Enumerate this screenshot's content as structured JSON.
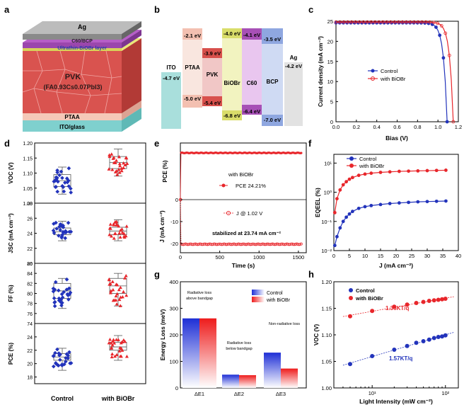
{
  "panels": {
    "a": {
      "letter": "a",
      "layers": [
        "Ag",
        "C60/BCP",
        "Ultrathin-BiOBr layer",
        "PVK",
        "(FA0.93Cs0.07PbI3)",
        "PTAA",
        "ITO/glass"
      ]
    },
    "b": {
      "letter": "b",
      "materials": [
        {
          "name": "ITO",
          "top": "-4.7 eV",
          "bottom": ""
        },
        {
          "name": "PTAA",
          "top": "-2.1 eV",
          "bottom": "-5.0 eV"
        },
        {
          "name": "PVK",
          "top": "-3.9 eV",
          "bottom": "-5.4 eV"
        },
        {
          "name": "BiOBr",
          "top": "-4.0 eV",
          "bottom": "-6.8 eV"
        },
        {
          "name": "C60",
          "top": "-4.1 eV",
          "bottom": "-6.4 eV"
        },
        {
          "name": "BCP",
          "top": "-3.5 eV",
          "bottom": "-7.0 eV"
        },
        {
          "name": "Ag",
          "top": "-4.2 eV",
          "bottom": ""
        }
      ]
    },
    "c": {
      "letter": "c",
      "chart_data": {
        "type": "line",
        "xlabel": "Bias (V)",
        "ylabel": "Current density (mA cm⁻²)",
        "xlim": [
          0,
          1.2
        ],
        "ylim": [
          0,
          25
        ],
        "xticks": [
          "0.0",
          "0.2",
          "0.4",
          "0.6",
          "0.8",
          "1.0",
          "1.2"
        ],
        "yticks": [
          "0",
          "5",
          "10",
          "15",
          "20",
          "25"
        ],
        "legend": "center",
        "series": [
          {
            "name": "Control",
            "color": "#2233bb",
            "jsc": 24.6,
            "voc": 1.09
          },
          {
            "name": "with BiOBr",
            "color": "#e8262b",
            "jsc": 24.8,
            "voc": 1.15
          }
        ]
      }
    },
    "d": {
      "letter": "d",
      "chart_data": {
        "type": "box",
        "categories": [
          "Control",
          "with BiOBr"
        ],
        "colors": [
          "#2233bb",
          "#e8262b"
        ],
        "subplots": [
          {
            "ylabel": "VOC (V)",
            "ylim": [
              1.0,
              1.2
            ],
            "yticks": [
              "1.00",
              "1.05",
              "1.10",
              "1.15",
              "1.20"
            ],
            "median": [
              1.075,
              1.135
            ],
            "q1": [
              1.055,
              1.115
            ],
            "q3": [
              1.095,
              1.155
            ],
            "min": [
              1.03,
              1.09
            ],
            "max": [
              1.12,
              1.18
            ]
          },
          {
            "ylabel": "JSC (mA cm⁻²)",
            "ylim": [
              20,
              28
            ],
            "yticks": [
              "20",
              "22",
              "24",
              "26",
              "28"
            ],
            "median": [
              24.2,
              24.3
            ],
            "q1": [
              23.8,
              23.8
            ],
            "q3": [
              24.7,
              24.8
            ],
            "min": [
              23.0,
              23.0
            ],
            "max": [
              25.6,
              25.8
            ]
          },
          {
            "ylabel": "FF (%)",
            "ylim": [
              74,
              86
            ],
            "yticks": [
              "74",
              "76",
              "78",
              "80",
              "82",
              "84",
              "86"
            ],
            "median": [
              80.5,
              81.5
            ],
            "q1": [
              79.0,
              80.0
            ],
            "q3": [
              82.0,
              83.0
            ],
            "min": [
              77.0,
              77.5
            ],
            "max": [
              83.0,
              84.0
            ]
          },
          {
            "ylabel": "PCE (%)",
            "ylim": [
              17,
              26
            ],
            "yticks": [
              "18",
              "20",
              "22",
              "24"
            ],
            "median": [
              21.0,
              22.5
            ],
            "q1": [
              20.5,
              22.0
            ],
            "q3": [
              21.5,
              23.2
            ],
            "min": [
              19.0,
              20.5
            ],
            "max": [
              22.3,
              24.2
            ]
          }
        ]
      }
    },
    "e": {
      "letter": "e",
      "chart_data": {
        "type": "scatter",
        "xlabel": "Time (s)",
        "ylabel_top": "PCE (%)",
        "ylabel_bottom": "J (mA cm⁻²)",
        "xlim": [
          0,
          1600
        ],
        "xticks": [
          "0",
          "500",
          "1000",
          "1500"
        ],
        "yticks_bottom": [
          "0",
          "-10",
          "-20"
        ],
        "pce_value": 24.21,
        "j_value": -23.74,
        "legend_title": "with BiOBr",
        "legend_pce": "PCE  24.21%",
        "legend_j": "J @ 1.02 V",
        "annotation": "stabilized at 23.74 mA cm⁻²"
      }
    },
    "f": {
      "letter": "f",
      "chart_data": {
        "type": "line",
        "xlabel": "J (mA cm⁻²)",
        "ylabel": "EQEEL (%)",
        "xlim": [
          0,
          40
        ],
        "ylog": true,
        "xticks": [
          "0",
          "5",
          "10",
          "15",
          "20",
          "25",
          "30",
          "35",
          "40"
        ],
        "yticks": [
          "10⁻²",
          "10⁻¹",
          "10⁰",
          "10¹"
        ],
        "series": [
          {
            "name": "Control",
            "color": "#2233bb",
            "x": [
              0.3,
              1,
              2,
              3,
              4,
              5,
              6,
              8,
              10,
              12,
              15,
              18,
              21,
              24,
              27,
              30,
              33,
              36
            ],
            "y": [
              0.015,
              0.03,
              0.06,
              0.1,
              0.14,
              0.18,
              0.22,
              0.28,
              0.32,
              0.35,
              0.38,
              0.41,
              0.43,
              0.45,
              0.47,
              0.48,
              0.49,
              0.5
            ]
          },
          {
            "name": "with BiOBr",
            "color": "#e8262b",
            "x": [
              0.3,
              1,
              2,
              3,
              4,
              5,
              6,
              8,
              10,
              12,
              15,
              18,
              21,
              24,
              27,
              30,
              33,
              36
            ],
            "y": [
              0.2,
              0.6,
              1.2,
              1.8,
              2.3,
              2.8,
              3.2,
              3.8,
              4.2,
              4.5,
              4.8,
              5.0,
              5.2,
              5.3,
              5.4,
              5.5,
              5.6,
              5.7
            ]
          }
        ]
      }
    },
    "g": {
      "letter": "g",
      "chart_data": {
        "type": "bar",
        "ylabel": "Energy Loss (meV)",
        "ylim": [
          0,
          400
        ],
        "yticks": [
          "0",
          "100",
          "200",
          "300",
          "400"
        ],
        "categories": [
          "ΔE1",
          "ΔE2",
          "ΔE3"
        ],
        "category_notes": [
          "Radiative loss above bandgap",
          "Radiative loss below bandgap",
          "Non-radiative loss"
        ],
        "series": [
          {
            "name": "Control",
            "color": "#2233dd",
            "values": [
              262,
              50,
              133
            ]
          },
          {
            "name": "with BiOBr",
            "color": "#ee2222",
            "values": [
              262,
              48,
              73
            ]
          }
        ]
      }
    },
    "h": {
      "letter": "h",
      "chart_data": {
        "type": "scatter",
        "xlabel": "Light Intensity (mW cm⁻²)",
        "ylabel": "VOC (V)",
        "xlog": true,
        "xlim": [
          3,
          150
        ],
        "ylim": [
          1.0,
          1.2
        ],
        "yticks": [
          "1.00",
          "1.05",
          "1.10",
          "1.15",
          "1.20"
        ],
        "xticks": [
          "10¹",
          "10²"
        ],
        "series": [
          {
            "name": "Control",
            "color": "#2233bb",
            "x": [
              5,
              10,
              20,
              30,
              40,
              50,
              60,
              70,
              80,
              90,
              100
            ],
            "y": [
              1.045,
              1.06,
              1.072,
              1.079,
              1.085,
              1.088,
              1.091,
              1.094,
              1.096,
              1.097,
              1.099
            ],
            "label": "1.57KT/q"
          },
          {
            "name": "with BiOBr",
            "color": "#e8262b",
            "x": [
              5,
              10,
              20,
              30,
              40,
              50,
              60,
              70,
              80,
              90,
              100
            ],
            "y": [
              1.135,
              1.145,
              1.153,
              1.157,
              1.16,
              1.162,
              1.164,
              1.165,
              1.166,
              1.167,
              1.168
            ],
            "label": "1.36KT/q"
          }
        ]
      }
    }
  }
}
